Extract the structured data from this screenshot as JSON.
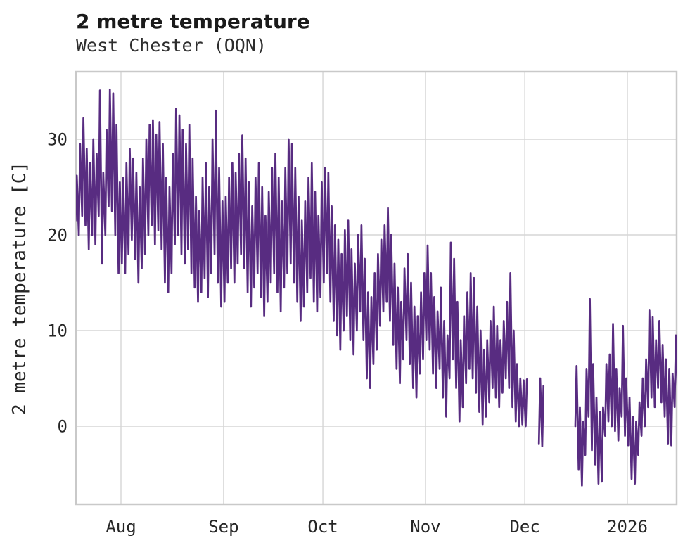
{
  "chart_data": {
    "type": "line",
    "title": "2 metre temperature",
    "subtitle": "West Chester (OQN)",
    "ylabel": "2 metre temperature [C]",
    "xlabel": "",
    "line_color": "#582c81",
    "grid_color": "#d6d6d6",
    "spine_color": "#c9c9c9",
    "text_color": "#262626",
    "grid_on": true,
    "legend": "none",
    "ylim": [
      -8.2,
      37.1
    ],
    "y_ticks": [
      0,
      10,
      20,
      30
    ],
    "x_ticks": [
      {
        "label": "Aug",
        "offset_days_from_aug1": 0
      },
      {
        "label": "Sep",
        "offset_days_from_aug1": 31
      },
      {
        "label": "Oct",
        "offset_days_from_aug1": 61
      },
      {
        "label": "Nov",
        "offset_days_from_aug1": 92
      },
      {
        "label": "Dec",
        "offset_days_from_aug1": 122
      },
      {
        "label": "2026",
        "offset_days_from_aug1": 153
      }
    ],
    "x_range": {
      "start": "2025-07-18",
      "end": "2026-01-16"
    },
    "unit": "C",
    "series": [
      {
        "name": "2 metre temperature",
        "sampling": "sub-daily (diurnal min/max per day, gaps where no data)",
        "daily_min_max": [
          [
            "2025-07-18",
            21.5,
            26.2
          ],
          [
            "2025-07-19",
            20,
            29.5
          ],
          [
            "2025-07-20",
            22,
            32.2
          ],
          [
            "2025-07-21",
            21,
            29
          ],
          [
            "2025-07-22",
            18.5,
            27.5
          ],
          [
            "2025-07-23",
            20,
            30
          ],
          [
            "2025-07-24",
            19,
            28.5
          ],
          [
            "2025-07-25",
            22,
            35.1
          ],
          [
            "2025-07-26",
            17,
            26.5
          ],
          [
            "2025-07-27",
            20,
            31
          ],
          [
            "2025-07-28",
            23,
            35.2
          ],
          [
            "2025-07-29",
            22.5,
            34.8
          ],
          [
            "2025-07-30",
            20,
            31.5
          ],
          [
            "2025-07-31",
            16,
            25.5
          ],
          [
            "2025-08-01",
            17,
            26
          ],
          [
            "2025-08-02",
            16,
            27.5
          ],
          [
            "2025-08-03",
            18,
            29
          ],
          [
            "2025-08-04",
            19.5,
            28
          ],
          [
            "2025-08-05",
            17.5,
            26.5
          ],
          [
            "2025-08-06",
            15,
            25
          ],
          [
            "2025-08-07",
            16.5,
            28
          ],
          [
            "2025-08-08",
            18,
            30
          ],
          [
            "2025-08-09",
            20,
            31.5
          ],
          [
            "2025-08-10",
            21,
            32
          ],
          [
            "2025-08-11",
            19,
            30.5
          ],
          [
            "2025-08-12",
            20.5,
            31.8
          ],
          [
            "2025-08-13",
            18.5,
            29.5
          ],
          [
            "2025-08-14",
            15,
            26
          ],
          [
            "2025-08-15",
            14,
            25
          ],
          [
            "2025-08-16",
            16,
            28.5
          ],
          [
            "2025-08-17",
            19,
            33.2
          ],
          [
            "2025-08-18",
            20,
            32.5
          ],
          [
            "2025-08-19",
            18,
            31
          ],
          [
            "2025-08-20",
            17,
            29.5
          ],
          [
            "2025-08-21",
            18.5,
            31.5
          ],
          [
            "2025-08-22",
            16,
            28
          ],
          [
            "2025-08-23",
            14.5,
            24
          ],
          [
            "2025-08-24",
            13,
            22.5
          ],
          [
            "2025-08-25",
            14,
            26
          ],
          [
            "2025-08-26",
            15.5,
            27.5
          ],
          [
            "2025-08-27",
            13.5,
            25
          ],
          [
            "2025-08-28",
            16,
            30
          ],
          [
            "2025-08-29",
            18,
            33
          ],
          [
            "2025-08-30",
            15,
            27
          ],
          [
            "2025-08-31",
            12.5,
            23.5
          ],
          [
            "2025-09-01",
            13,
            24
          ],
          [
            "2025-09-02",
            15,
            26
          ],
          [
            "2025-09-03",
            16.5,
            27.5
          ],
          [
            "2025-09-04",
            15,
            26.5
          ],
          [
            "2025-09-05",
            17,
            28.5
          ],
          [
            "2025-09-06",
            18,
            30.4
          ],
          [
            "2025-09-07",
            16.5,
            28
          ],
          [
            "2025-09-08",
            14,
            25.5
          ],
          [
            "2025-09-09",
            12.5,
            23
          ],
          [
            "2025-09-10",
            14.5,
            26
          ],
          [
            "2025-09-11",
            16,
            27.5
          ],
          [
            "2025-09-12",
            13.5,
            25
          ],
          [
            "2025-09-13",
            11.5,
            22
          ],
          [
            "2025-09-14",
            13,
            24.5
          ],
          [
            "2025-09-15",
            15,
            27
          ],
          [
            "2025-09-16",
            16,
            28.5
          ],
          [
            "2025-09-17",
            14,
            26
          ],
          [
            "2025-09-18",
            12,
            23.5
          ],
          [
            "2025-09-19",
            14.5,
            27
          ],
          [
            "2025-09-20",
            16,
            30
          ],
          [
            "2025-09-21",
            17,
            29.5
          ],
          [
            "2025-09-22",
            15,
            27
          ],
          [
            "2025-09-23",
            13,
            24
          ],
          [
            "2025-09-24",
            11,
            21.5
          ],
          [
            "2025-09-25",
            12.5,
            23.5
          ],
          [
            "2025-09-26",
            14,
            26
          ],
          [
            "2025-09-27",
            15.5,
            27.5
          ],
          [
            "2025-09-28",
            13,
            24.5
          ],
          [
            "2025-09-29",
            12,
            22
          ],
          [
            "2025-09-30",
            13.5,
            25.5
          ],
          [
            "2025-10-01",
            15,
            27
          ],
          [
            "2025-10-02",
            16,
            26.5
          ],
          [
            "2025-10-03",
            13,
            23
          ],
          [
            "2025-10-04",
            11,
            21
          ],
          [
            "2025-10-05",
            9.5,
            19.5
          ],
          [
            "2025-10-06",
            8,
            18
          ],
          [
            "2025-10-07",
            10,
            20.5
          ],
          [
            "2025-10-08",
            11.5,
            21.5
          ],
          [
            "2025-10-09",
            9,
            18.5
          ],
          [
            "2025-10-10",
            7.5,
            17
          ],
          [
            "2025-10-11",
            10,
            20
          ],
          [
            "2025-10-12",
            12,
            21
          ],
          [
            "2025-10-13",
            9,
            17.5
          ],
          [
            "2025-10-14",
            5,
            14
          ],
          [
            "2025-10-15",
            4,
            13.5
          ],
          [
            "2025-10-16",
            6.5,
            16
          ],
          [
            "2025-10-17",
            8,
            18
          ],
          [
            "2025-10-18",
            10.5,
            19.5
          ],
          [
            "2025-10-19",
            12,
            21
          ],
          [
            "2025-10-20",
            13,
            22.8
          ],
          [
            "2025-10-21",
            11,
            20
          ],
          [
            "2025-10-22",
            8.5,
            17
          ],
          [
            "2025-10-23",
            6,
            14.5
          ],
          [
            "2025-10-24",
            4.5,
            13
          ],
          [
            "2025-10-25",
            7,
            16.5
          ],
          [
            "2025-10-26",
            9,
            18
          ],
          [
            "2025-10-27",
            6.5,
            15
          ],
          [
            "2025-10-28",
            4,
            12.5
          ],
          [
            "2025-10-29",
            3,
            11.5
          ],
          [
            "2025-10-30",
            5.5,
            14
          ],
          [
            "2025-10-31",
            7,
            16
          ],
          [
            "2025-11-01",
            9,
            18.9
          ],
          [
            "2025-11-02",
            8,
            16
          ],
          [
            "2025-11-03",
            5.5,
            13.5
          ],
          [
            "2025-11-04",
            4,
            12
          ],
          [
            "2025-11-05",
            6,
            14.5
          ],
          [
            "2025-11-06",
            3,
            11
          ],
          [
            "2025-11-07",
            1,
            9.5
          ],
          [
            "2025-11-08",
            5,
            19.2
          ],
          [
            "2025-11-09",
            7,
            17.5
          ],
          [
            "2025-11-10",
            4,
            13
          ],
          [
            "2025-11-11",
            0.5,
            9
          ],
          [
            "2025-11-12",
            2,
            11.5
          ],
          [
            "2025-11-13",
            4.5,
            14
          ],
          [
            "2025-11-14",
            6,
            16
          ],
          [
            "2025-11-15",
            5,
            15.5
          ],
          [
            "2025-11-16",
            3.5,
            12.5
          ],
          [
            "2025-11-17",
            1.5,
            10
          ],
          [
            "2025-11-18",
            0.2,
            8
          ],
          [
            "2025-11-19",
            1,
            9
          ],
          [
            "2025-11-20",
            2.5,
            11
          ],
          [
            "2025-11-21",
            4,
            12.5
          ],
          [
            "2025-11-22",
            3,
            10.5
          ],
          [
            "2025-11-23",
            2,
            9
          ],
          [
            "2025-11-24",
            3.5,
            11
          ],
          [
            "2025-11-25",
            5,
            13
          ],
          [
            "2025-11-26",
            4,
            16
          ],
          [
            "2025-11-27",
            2,
            10
          ],
          [
            "2025-11-28",
            0.5,
            6.5
          ],
          [
            "2025-11-29",
            0,
            5
          ],
          [
            "2025-11-30",
            0.2,
            4.8
          ],
          [
            "2025-12-01",
            0,
            4.9
          ],
          [
            "2025-12-02",
            null,
            null
          ],
          [
            "2025-12-03",
            null,
            null
          ],
          [
            "2025-12-04",
            null,
            null
          ],
          [
            "2025-12-05",
            -1.8,
            5
          ],
          [
            "2025-12-06",
            -2.1,
            4.2
          ],
          [
            "2025-12-07",
            null,
            null
          ],
          [
            "2025-12-08",
            null,
            null
          ],
          [
            "2025-12-09",
            null,
            null
          ],
          [
            "2025-12-10",
            null,
            null
          ],
          [
            "2025-12-11",
            null,
            null
          ],
          [
            "2025-12-12",
            null,
            null
          ],
          [
            "2025-12-13",
            null,
            null
          ],
          [
            "2025-12-14",
            null,
            null
          ],
          [
            "2025-12-15",
            null,
            null
          ],
          [
            "2025-12-16",
            0,
            6.3
          ],
          [
            "2025-12-17",
            -4.5,
            2
          ],
          [
            "2025-12-18",
            -6.2,
            0.5
          ],
          [
            "2025-12-19",
            -3,
            6
          ],
          [
            "2025-12-20",
            1,
            13.3
          ],
          [
            "2025-12-21",
            -2.5,
            6.5
          ],
          [
            "2025-12-22",
            -4,
            3
          ],
          [
            "2025-12-23",
            -6,
            1.5
          ],
          [
            "2025-12-24",
            -5.8,
            2
          ],
          [
            "2025-12-25",
            -1,
            6.5
          ],
          [
            "2025-12-26",
            0.5,
            7.5
          ],
          [
            "2025-12-27",
            0,
            10.7
          ],
          [
            "2025-12-28",
            -0.5,
            6
          ],
          [
            "2025-12-29",
            -1.5,
            4
          ],
          [
            "2025-12-30",
            1,
            10.5
          ],
          [
            "2025-12-31",
            -1,
            5
          ],
          [
            "2026-01-01",
            -2,
            3
          ],
          [
            "2026-01-02",
            -5.5,
            1
          ],
          [
            "2026-01-03",
            -6,
            0.5
          ],
          [
            "2026-01-04",
            -3,
            2.5
          ],
          [
            "2026-01-05",
            -1,
            5
          ],
          [
            "2026-01-06",
            0,
            7
          ],
          [
            "2026-01-07",
            2,
            12.1
          ],
          [
            "2026-01-08",
            3,
            11.4
          ],
          [
            "2026-01-09",
            2,
            9
          ],
          [
            "2026-01-10",
            4,
            11
          ],
          [
            "2026-01-11",
            2.5,
            8.5
          ],
          [
            "2026-01-12",
            1,
            7
          ],
          [
            "2026-01-13",
            -1.8,
            6
          ],
          [
            "2026-01-14",
            -2,
            5.5
          ],
          [
            "2026-01-15",
            2,
            9.5
          ],
          [
            "2026-01-16",
            3,
            11.6
          ]
        ]
      }
    ]
  }
}
